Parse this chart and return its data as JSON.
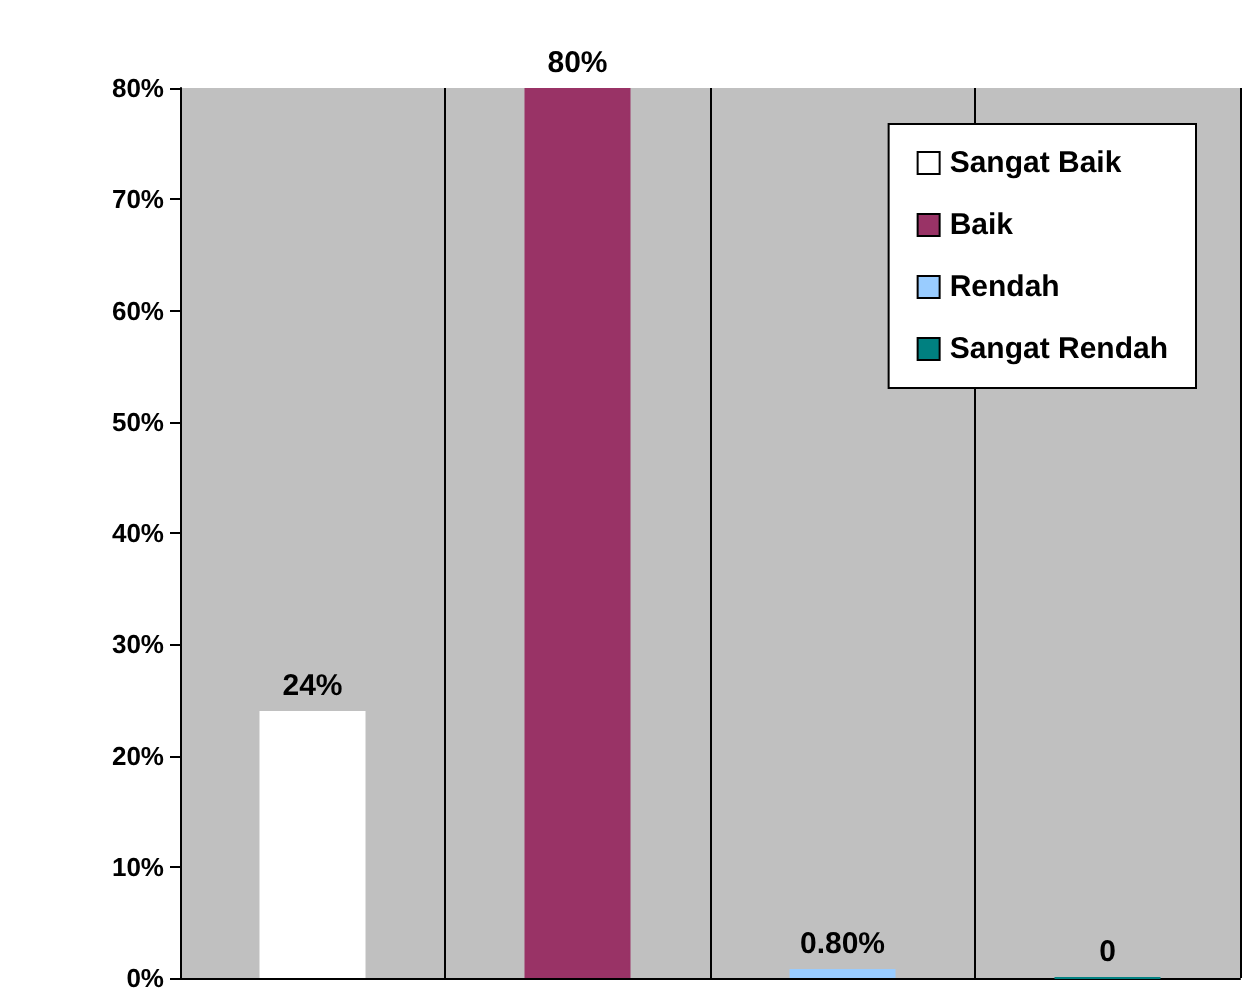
{
  "chart_data": {
    "type": "bar",
    "categories": [
      null,
      null,
      null,
      null
    ],
    "series": [
      {
        "name": "Sangat Baik",
        "color": "#ffffff",
        "values": [
          24,
          null,
          null,
          null
        ],
        "value_labels": [
          "24%",
          null,
          null,
          null
        ]
      },
      {
        "name": "Baik",
        "color": "#993366",
        "values": [
          null,
          80,
          null,
          null
        ],
        "value_labels": [
          null,
          "80%",
          null,
          null
        ]
      },
      {
        "name": "Rendah",
        "color": "#99ccff",
        "values": [
          null,
          null,
          0.8,
          null
        ],
        "value_labels": [
          null,
          null,
          "0.80%",
          null
        ]
      },
      {
        "name": "Sangat Rendah",
        "color": "#008080",
        "values": [
          null,
          null,
          null,
          0
        ],
        "value_labels": [
          null,
          null,
          null,
          "0"
        ]
      }
    ],
    "ylim": [
      0,
      80
    ],
    "yticks": [
      {
        "value": 0,
        "label": "0%"
      },
      {
        "value": 10,
        "label": "10%"
      },
      {
        "value": 20,
        "label": "20%"
      },
      {
        "value": 30,
        "label": "30%"
      },
      {
        "value": 40,
        "label": "40%"
      },
      {
        "value": 50,
        "label": "50%"
      },
      {
        "value": 60,
        "label": "60%"
      },
      {
        "value": 70,
        "label": "70%"
      },
      {
        "value": 80,
        "label": "80%"
      }
    ],
    "grid": "x",
    "legend": "top right",
    "tick_labels": "y"
  }
}
